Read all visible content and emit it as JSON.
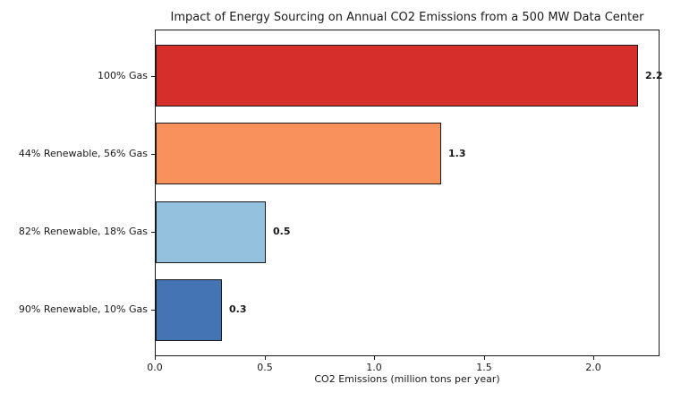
{
  "figure": {
    "background": "#ffffff",
    "text_color": "#1a1a1a"
  },
  "chart_data": {
    "type": "bar",
    "orientation": "horizontal",
    "title": "Impact of Energy Sourcing on Annual CO2 Emissions from a 500 MW Data Center",
    "xlabel": "CO2 Emissions (million tons per year)",
    "ylabel": "",
    "categories": [
      "100% Gas",
      "44% Renewable, 56% Gas",
      "82% Renewable, 18% Gas",
      "90% Renewable, 10% Gas"
    ],
    "values": [
      2.2,
      1.3,
      0.5,
      0.3
    ],
    "value_labels": [
      "2.2",
      "1.3",
      "0.5",
      "0.3"
    ],
    "bar_colors": [
      "#d62f2b",
      "#f9915c",
      "#93c1de",
      "#4574b4"
    ],
    "bar_edge_color": "#1a1a1a",
    "xlim": [
      0.0,
      2.3
    ],
    "xticks": [
      0.0,
      0.5,
      1.0,
      1.5,
      2.0
    ],
    "xtick_labels": [
      "0.0",
      "0.5",
      "1.0",
      "1.5",
      "2.0"
    ],
    "grid": false,
    "legend": false
  }
}
